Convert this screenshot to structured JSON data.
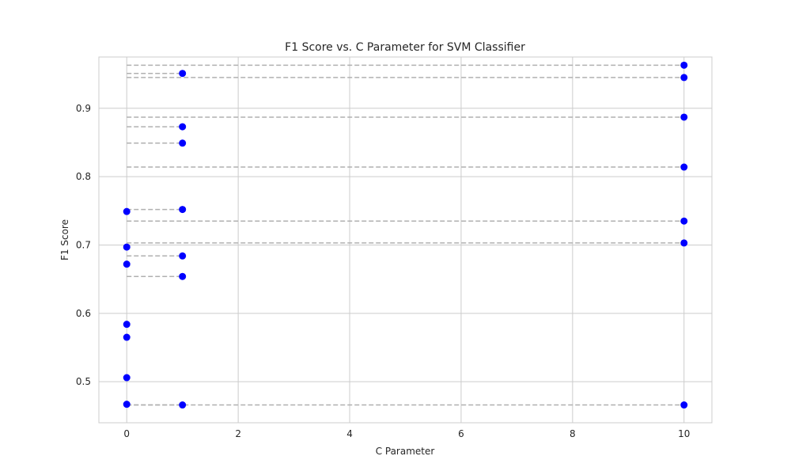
{
  "chart_data": {
    "type": "scatter",
    "title": "F1 Score vs. C Parameter for SVM Classifier",
    "xlabel": "C Parameter",
    "ylabel": "F1 Score",
    "xlim": [
      -0.5,
      10.5
    ],
    "ylim": [
      0.44,
      0.975
    ],
    "xticks": [
      0,
      2,
      4,
      6,
      8,
      10
    ],
    "yticks": [
      0.5,
      0.6,
      0.7,
      0.8,
      0.9
    ],
    "grid": true,
    "marker_color": "#0000ff",
    "reference_line_color": "#b0b0b0",
    "points": [
      {
        "x": 0,
        "y": 0.749
      },
      {
        "x": 0,
        "y": 0.697
      },
      {
        "x": 0,
        "y": 0.672
      },
      {
        "x": 0,
        "y": 0.584
      },
      {
        "x": 0,
        "y": 0.565
      },
      {
        "x": 0,
        "y": 0.506
      },
      {
        "x": 0,
        "y": 0.467
      },
      {
        "x": 1,
        "y": 0.951
      },
      {
        "x": 1,
        "y": 0.873
      },
      {
        "x": 1,
        "y": 0.849
      },
      {
        "x": 1,
        "y": 0.752
      },
      {
        "x": 1,
        "y": 0.684
      },
      {
        "x": 1,
        "y": 0.654
      },
      {
        "x": 1,
        "y": 0.466
      },
      {
        "x": 10,
        "y": 0.963
      },
      {
        "x": 10,
        "y": 0.945
      },
      {
        "x": 10,
        "y": 0.887
      },
      {
        "x": 10,
        "y": 0.814
      },
      {
        "x": 10,
        "y": 0.735
      },
      {
        "x": 10,
        "y": 0.703
      },
      {
        "x": 10,
        "y": 0.466
      }
    ]
  }
}
